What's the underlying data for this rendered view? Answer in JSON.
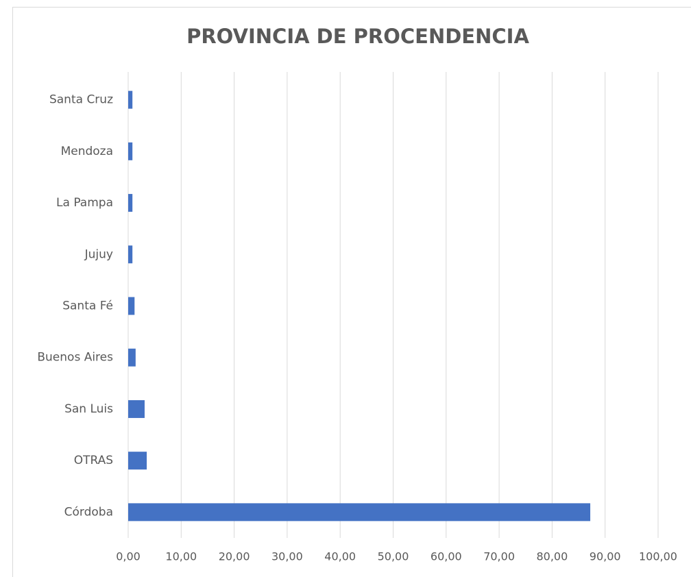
{
  "chart_data": {
    "type": "bar",
    "orientation": "horizontal",
    "title": "PROVINCIA DE PROCENDENCIA",
    "categories": [
      "Córdoba",
      "OTRAS",
      "San Luis",
      "Buenos Aires",
      "Santa Fé",
      "Jujuy",
      "La Pampa",
      "Mendoza",
      "Santa Cruz"
    ],
    "values": [
      87.2,
      3.5,
      3.1,
      1.4,
      1.2,
      0.8,
      0.8,
      0.8,
      0.8
    ],
    "color": "#4472c4",
    "xlim": [
      0,
      100
    ],
    "xticks": [
      {
        "value": 0,
        "label": "0,00"
      },
      {
        "value": 10,
        "label": "10,00"
      },
      {
        "value": 20,
        "label": "20,00"
      },
      {
        "value": 30,
        "label": "30,00"
      },
      {
        "value": 40,
        "label": "40,00"
      },
      {
        "value": 50,
        "label": "50,00"
      },
      {
        "value": 60,
        "label": "60,00"
      },
      {
        "value": 70,
        "label": "70,00"
      },
      {
        "value": 80,
        "label": "80,00"
      },
      {
        "value": 90,
        "label": "90,00"
      },
      {
        "value": 100,
        "label": "100,00"
      }
    ],
    "grid": true
  }
}
